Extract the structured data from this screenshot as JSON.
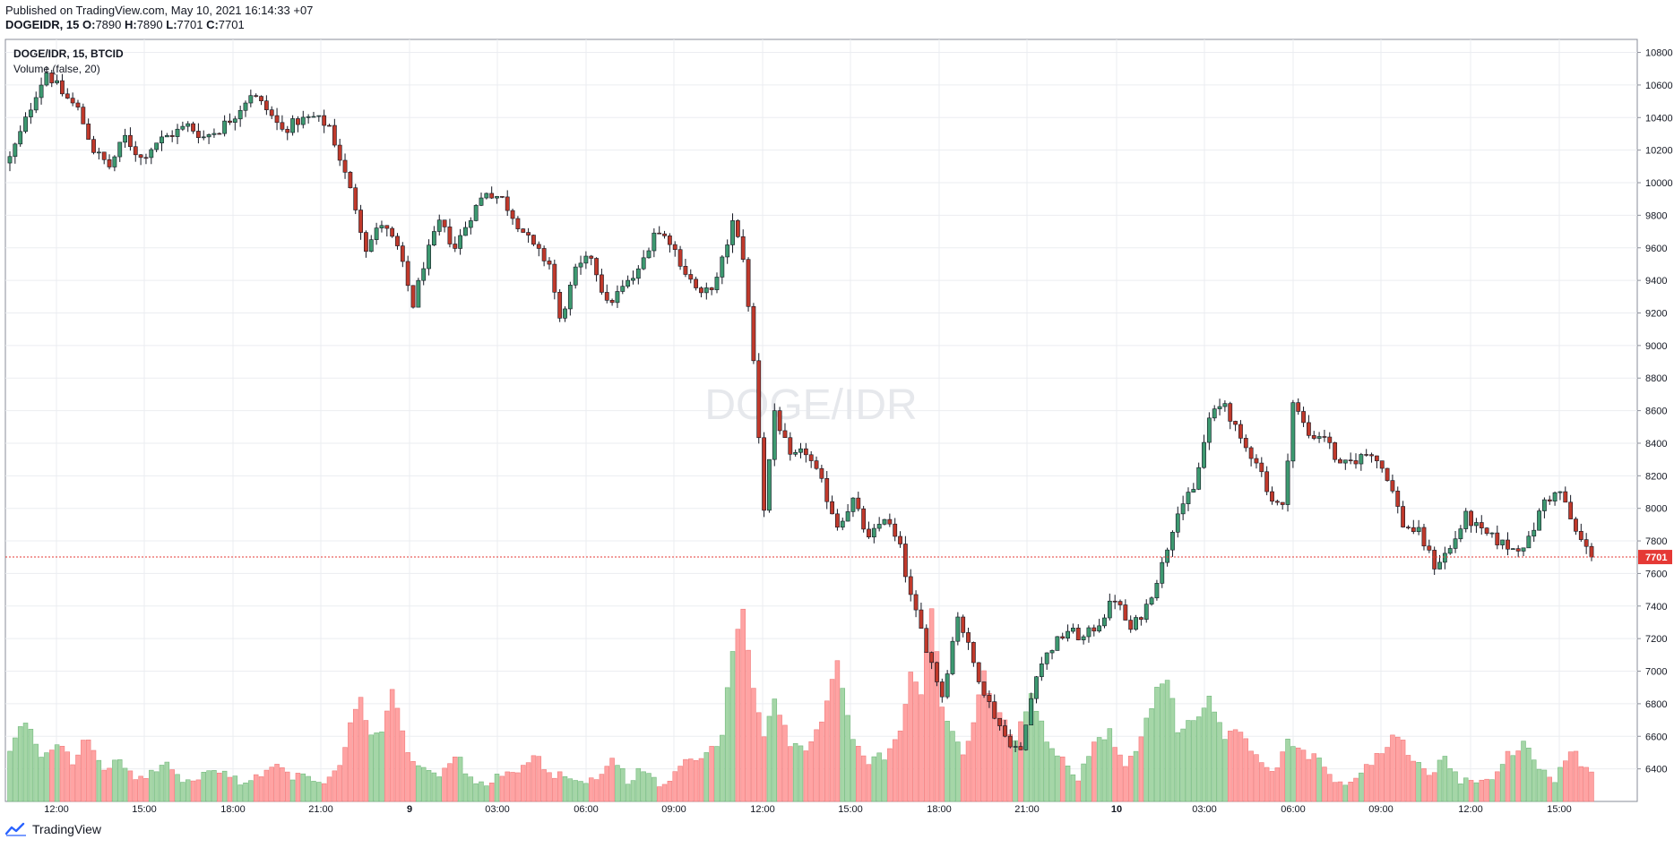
{
  "header": {
    "published": "Published on TradingView.com, May 10, 2021 16:14:33 +07",
    "symbol_line": "DOGEIDR, 15",
    "o_label": "O:",
    "o_value": "7890",
    "h_label": "H:",
    "h_value": "7890",
    "l_label": "L:",
    "l_value": "7701",
    "c_label": "C:",
    "c_value": "7701"
  },
  "legend": {
    "symbol": "DOGE/IDR, 15, BTCID",
    "indicator": "Volume (false, 20)"
  },
  "watermark": "DOGE/IDR",
  "last_price_label": "7701",
  "footer": {
    "brand": "TradingView"
  },
  "colors": {
    "up": "#26a69a",
    "down": "#ef5350",
    "up_body": "#66bb6a",
    "candle_up": "#3d9970",
    "candle_down": "#c0392b",
    "vol_up": "#a5d6a7",
    "vol_down": "#ffa3a3",
    "grid": "#ebedf1",
    "price_line": "#e53935"
  },
  "chart_data": {
    "type": "candlestick",
    "interval": "15",
    "y_ticks": [
      6400,
      6600,
      6800,
      7000,
      7200,
      7400,
      7600,
      7800,
      8000,
      8200,
      8400,
      8600,
      8800,
      9000,
      9200,
      9400,
      9600,
      9800,
      10000,
      10200,
      10400,
      10600,
      10800
    ],
    "ylim": [
      6200,
      10880
    ],
    "x_ticks": [
      "12:00",
      "15:00",
      "18:00",
      "21:00",
      "9",
      "03:00",
      "06:00",
      "09:00",
      "12:00",
      "15:00",
      "18:00",
      "21:00",
      "10",
      "03:00",
      "06:00",
      "09:00",
      "12:00",
      "15:00"
    ],
    "last_price": 7701,
    "close_path": [
      [
        0,
        10150
      ],
      [
        2,
        10300
      ],
      [
        5,
        10550
      ],
      [
        7,
        10680
      ],
      [
        10,
        10550
      ],
      [
        13,
        10450
      ],
      [
        16,
        10200
      ],
      [
        19,
        10100
      ],
      [
        22,
        10280
      ],
      [
        25,
        10150
      ],
      [
        28,
        10250
      ],
      [
        31,
        10300
      ],
      [
        34,
        10350
      ],
      [
        37,
        10280
      ],
      [
        40,
        10330
      ],
      [
        43,
        10420
      ],
      [
        46,
        10550
      ],
      [
        49,
        10450
      ],
      [
        52,
        10320
      ],
      [
        55,
        10380
      ],
      [
        58,
        10400
      ],
      [
        61,
        10350
      ],
      [
        63,
        10150
      ],
      [
        66,
        9850
      ],
      [
        68,
        9600
      ],
      [
        71,
        9750
      ],
      [
        74,
        9600
      ],
      [
        77,
        9250
      ],
      [
        79,
        9500
      ],
      [
        82,
        9750
      ],
      [
        85,
        9600
      ],
      [
        88,
        9800
      ],
      [
        91,
        9950
      ],
      [
        94,
        9900
      ],
      [
        97,
        9750
      ],
      [
        100,
        9600
      ],
      [
        103,
        9500
      ],
      [
        105,
        9150
      ],
      [
        108,
        9450
      ],
      [
        111,
        9550
      ],
      [
        114,
        9250
      ],
      [
        117,
        9350
      ],
      [
        120,
        9450
      ],
      [
        123,
        9700
      ],
      [
        126,
        9650
      ],
      [
        129,
        9450
      ],
      [
        132,
        9300
      ],
      [
        135,
        9400
      ],
      [
        138,
        9750
      ],
      [
        140,
        9550
      ],
      [
        142,
        8900
      ],
      [
        144,
        8000
      ],
      [
        146,
        8600
      ],
      [
        149,
        8300
      ],
      [
        152,
        8350
      ],
      [
        155,
        8150
      ],
      [
        158,
        7900
      ],
      [
        161,
        8050
      ],
      [
        164,
        7800
      ],
      [
        167,
        7950
      ],
      [
        170,
        7750
      ],
      [
        172,
        7450
      ],
      [
        175,
        7150
      ],
      [
        178,
        6850
      ],
      [
        181,
        7350
      ],
      [
        184,
        7050
      ],
      [
        187,
        6800
      ],
      [
        190,
        6600
      ],
      [
        193,
        6500
      ],
      [
        196,
        7000
      ],
      [
        199,
        7150
      ],
      [
        202,
        7250
      ],
      [
        205,
        7200
      ],
      [
        208,
        7300
      ],
      [
        211,
        7450
      ],
      [
        214,
        7250
      ],
      [
        217,
        7400
      ],
      [
        220,
        7650
      ],
      [
        223,
        8000
      ],
      [
        226,
        8100
      ],
      [
        229,
        8550
      ],
      [
        232,
        8650
      ],
      [
        235,
        8400
      ],
      [
        238,
        8300
      ],
      [
        241,
        8050
      ],
      [
        243,
        8000
      ],
      [
        245,
        8650
      ],
      [
        248,
        8450
      ],
      [
        251,
        8450
      ],
      [
        254,
        8250
      ],
      [
        257,
        8300
      ],
      [
        260,
        8350
      ],
      [
        263,
        8200
      ],
      [
        266,
        7900
      ],
      [
        269,
        7850
      ],
      [
        272,
        7650
      ],
      [
        275,
        7750
      ],
      [
        278,
        7950
      ],
      [
        281,
        7850
      ],
      [
        284,
        7800
      ],
      [
        287,
        7750
      ],
      [
        290,
        7800
      ],
      [
        293,
        8050
      ],
      [
        296,
        8100
      ],
      [
        299,
        7850
      ],
      [
        302,
        7701
      ]
    ],
    "volume_path": [
      [
        0,
        6520
      ],
      [
        3,
        6700
      ],
      [
        6,
        6480
      ],
      [
        9,
        6550
      ],
      [
        12,
        6450
      ],
      [
        15,
        6600
      ],
      [
        18,
        6380
      ],
      [
        21,
        6450
      ],
      [
        24,
        6330
      ],
      [
        27,
        6370
      ],
      [
        30,
        6420
      ],
      [
        33,
        6340
      ],
      [
        36,
        6330
      ],
      [
        39,
        6420
      ],
      [
        42,
        6350
      ],
      [
        45,
        6300
      ],
      [
        48,
        6380
      ],
      [
        51,
        6440
      ],
      [
        54,
        6360
      ],
      [
        57,
        6330
      ],
      [
        60,
        6290
      ],
      [
        63,
        6400
      ],
      [
        65,
        6700
      ],
      [
        67,
        6850
      ],
      [
        69,
        6600
      ],
      [
        71,
        6650
      ],
      [
        73,
        6870
      ],
      [
        76,
        6500
      ],
      [
        79,
        6380
      ],
      [
        82,
        6360
      ],
      [
        85,
        6500
      ],
      [
        88,
        6330
      ],
      [
        91,
        6310
      ],
      [
        94,
        6360
      ],
      [
        97,
        6390
      ],
      [
        100,
        6500
      ],
      [
        103,
        6380
      ],
      [
        106,
        6350
      ],
      [
        109,
        6320
      ],
      [
        112,
        6360
      ],
      [
        115,
        6470
      ],
      [
        118,
        6330
      ],
      [
        121,
        6410
      ],
      [
        124,
        6320
      ],
      [
        127,
        6360
      ],
      [
        130,
        6480
      ],
      [
        133,
        6480
      ],
      [
        136,
        6600
      ],
      [
        138,
        7150
      ],
      [
        140,
        7390
      ],
      [
        142,
        6900
      ],
      [
        144,
        6620
      ],
      [
        146,
        6800
      ],
      [
        149,
        6560
      ],
      [
        152,
        6520
      ],
      [
        155,
        6680
      ],
      [
        158,
        7060
      ],
      [
        161,
        6560
      ],
      [
        164,
        6450
      ],
      [
        167,
        6480
      ],
      [
        170,
        6650
      ],
      [
        172,
        7000
      ],
      [
        174,
        6840
      ],
      [
        176,
        7400
      ],
      [
        178,
        6800
      ],
      [
        180,
        6620
      ],
      [
        182,
        6500
      ],
      [
        184,
        6680
      ],
      [
        186,
        6980
      ],
      [
        188,
        6800
      ],
      [
        190,
        6680
      ],
      [
        192,
        6560
      ],
      [
        195,
        6880
      ],
      [
        198,
        6580
      ],
      [
        201,
        6450
      ],
      [
        204,
        6330
      ],
      [
        207,
        6560
      ],
      [
        210,
        6630
      ],
      [
        213,
        6400
      ],
      [
        216,
        6580
      ],
      [
        219,
        6900
      ],
      [
        221,
        6970
      ],
      [
        223,
        6650
      ],
      [
        226,
        6680
      ],
      [
        229,
        6840
      ],
      [
        232,
        6600
      ],
      [
        235,
        6650
      ],
      [
        238,
        6480
      ],
      [
        241,
        6360
      ],
      [
        244,
        6580
      ],
      [
        247,
        6500
      ],
      [
        250,
        6450
      ],
      [
        253,
        6330
      ],
      [
        256,
        6300
      ],
      [
        259,
        6420
      ],
      [
        262,
        6500
      ],
      [
        265,
        6620
      ],
      [
        268,
        6440
      ],
      [
        271,
        6360
      ],
      [
        274,
        6480
      ],
      [
        277,
        6320
      ],
      [
        280,
        6340
      ],
      [
        283,
        6350
      ],
      [
        286,
        6480
      ],
      [
        289,
        6560
      ],
      [
        292,
        6410
      ],
      [
        295,
        6340
      ],
      [
        298,
        6520
      ],
      [
        301,
        6400
      ]
    ]
  }
}
